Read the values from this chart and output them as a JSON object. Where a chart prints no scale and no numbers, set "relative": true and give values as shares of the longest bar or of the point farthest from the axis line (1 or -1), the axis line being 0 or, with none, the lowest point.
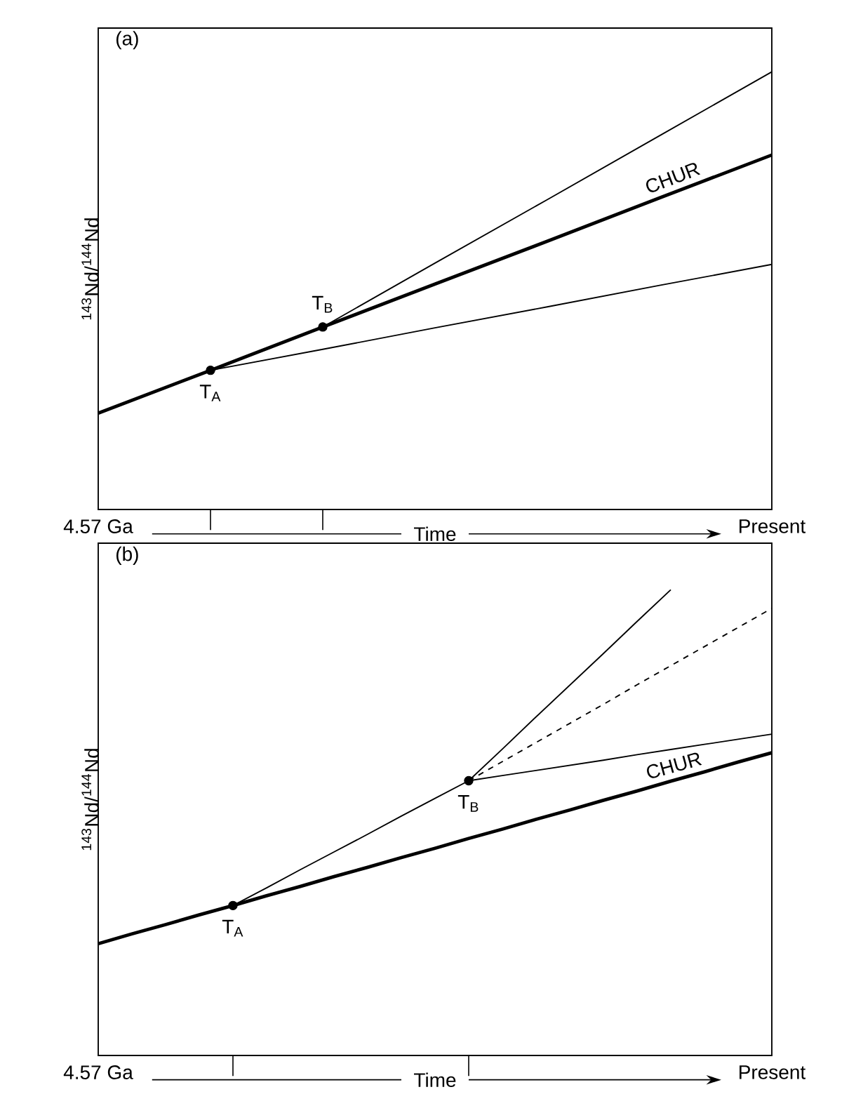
{
  "chart_data": [
    {
      "type": "line",
      "title": "(a)",
      "xlabel": "Time",
      "ylabel": "$^{143}$Nd/$^{144}$Nd",
      "relative": true,
      "tick_labels": "x",
      "categories": [
        "4.57 Ga",
        null,
        null,
        null,
        null,
        null,
        "Present"
      ],
      "series": [
        {
          "name": "CHUR",
          "color": "#000000",
          "values": [
            0.22,
            0.318,
            0.417,
            0.515,
            0.613,
            0.712,
            0.81
          ]
        },
        {
          "color": "#000000",
          "values": [
            null,
            null,
            0.417,
            0.563,
            0.708,
            0.854,
            1.0
          ]
        },
        {
          "color": "#000000",
          "values": [
            null,
            0.318,
            0.366,
            0.415,
            0.463,
            0.512,
            0.56
          ]
        },
        {
          "type": "scatter",
          "color": "#000000",
          "values": [
            null,
            0.318,
            0.417,
            null,
            null,
            null,
            null
          ]
        }
      ],
      "annotations": [
        "T$_{A}$",
        "T$_{B}$"
      ]
    },
    {
      "type": "line",
      "title": "(b)",
      "xlabel": "Time",
      "ylabel": "$^{143}$Nd/$^{144}$Nd",
      "relative": true,
      "tick_labels": "x",
      "categories": [
        "4.57 Ga",
        null,
        null,
        null,
        null,
        null,
        null,
        null,
        null,
        null,
        null,
        null,
        null,
        null,
        null,
        null,
        null,
        null,
        null,
        null,
        "Present"
      ],
      "series": [
        {
          "name": "CHUR",
          "color": "#000000",
          "values": [
            0.24,
            0.261,
            0.281,
            0.302,
            0.322,
            0.343,
            0.363,
            0.384,
            0.404,
            0.425,
            0.445,
            0.466,
            0.486,
            0.507,
            0.527,
            0.548,
            0.568,
            0.589,
            0.609,
            0.63,
            0.65
          ]
        },
        {
          "color": "#000000",
          "values": [
            null,
            null,
            null,
            null,
            0.322,
            0.36,
            0.399,
            0.437,
            0.475,
            0.514,
            0.552,
            0.59,
            null,
            null,
            null,
            null,
            null,
            null,
            null,
            null,
            null
          ]
        },
        {
          "color": "#000000",
          "values": [
            null,
            null,
            null,
            null,
            null,
            null,
            null,
            null,
            null,
            null,
            null,
            0.59,
            0.658,
            0.727,
            0.795,
            0.863,
            0.932,
            1.0,
            null,
            null,
            null
          ]
        },
        {
          "color": "#000000",
          "line_style": "dashed",
          "values": [
            null,
            null,
            null,
            null,
            null,
            null,
            null,
            null,
            null,
            null,
            null,
            0.59,
            0.631,
            0.672,
            0.713,
            0.754,
            0.796,
            0.837,
            0.878,
            0.919,
            0.96
          ]
        },
        {
          "color": "#000000",
          "values": [
            null,
            null,
            null,
            null,
            null,
            null,
            null,
            null,
            null,
            null,
            null,
            0.59,
            0.601,
            0.612,
            0.623,
            0.634,
            0.646,
            0.657,
            0.668,
            0.679,
            0.69
          ]
        },
        {
          "type": "scatter",
          "color": "#000000",
          "values": [
            null,
            null,
            null,
            null,
            0.322,
            null,
            null,
            null,
            null,
            null,
            null,
            0.59,
            null,
            null,
            null,
            null,
            null,
            null,
            null,
            null,
            null
          ]
        }
      ],
      "annotations": [
        "T$_{A}$",
        "T$_{B}$"
      ]
    }
  ]
}
